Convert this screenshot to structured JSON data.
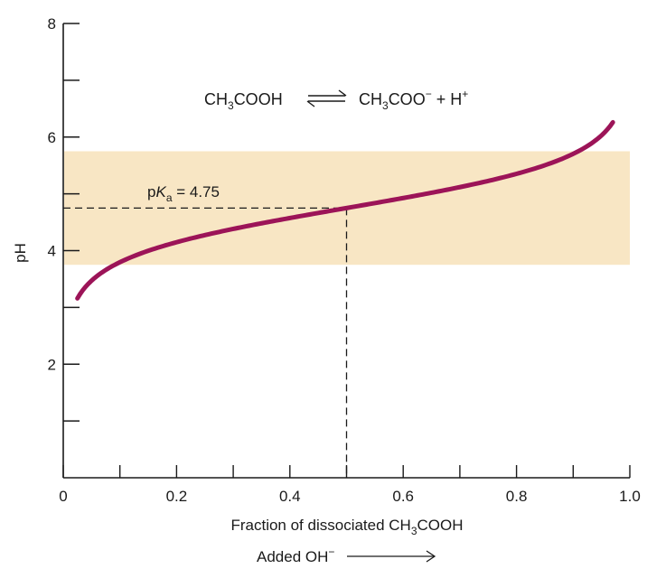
{
  "chart_data": {
    "type": "line",
    "title": "",
    "xlabel": {
      "prefix": "Fraction of dissociated CH",
      "sub": "3",
      "suffix": "COOH"
    },
    "xlabel_secondary": {
      "text": "Added OH",
      "sup": "−"
    },
    "ylabel": "pH",
    "xlim": [
      0,
      1.0
    ],
    "ylim": [
      0,
      8
    ],
    "x_ticks_major": [
      0,
      0.2,
      0.4,
      0.6,
      0.8,
      1.0
    ],
    "x_tick_labels": [
      "0",
      "0.2",
      "0.4",
      "0.6",
      "0.8",
      "1.0"
    ],
    "x_ticks_minor": [
      0.1,
      0.3,
      0.5,
      0.7,
      0.9
    ],
    "y_ticks_major": [
      2,
      4,
      6,
      8
    ],
    "y_tick_labels": [
      "2",
      "4",
      "6",
      "8"
    ],
    "y_ticks_minor": [
      1,
      3,
      5,
      7
    ],
    "grid": false,
    "buffer_band": {
      "y_from": 3.75,
      "y_to": 5.75,
      "color": "#f8e6c4"
    },
    "pka": {
      "value": 4.75,
      "x": 0.5,
      "label_prefix": "p",
      "label_italic": "K",
      "label_sub": "a",
      "label_suffix": " = 4.75"
    },
    "series": [
      {
        "color": "#9c1458",
        "x_range": [
          0.025,
          0.97
        ],
        "pka": 4.75
      }
    ],
    "annotation": {
      "left": {
        "prefix": "CH",
        "sub": "3",
        "suffix": "COOH"
      },
      "right": {
        "prefix": "CH",
        "sub": "3",
        "mid": "COO",
        "sup1": "−",
        "plus": " + H",
        "sup2": "+"
      }
    },
    "colors": {
      "curve": "#9c1458",
      "band": "#f8e6c4",
      "axis": "#1a1a1a"
    }
  }
}
